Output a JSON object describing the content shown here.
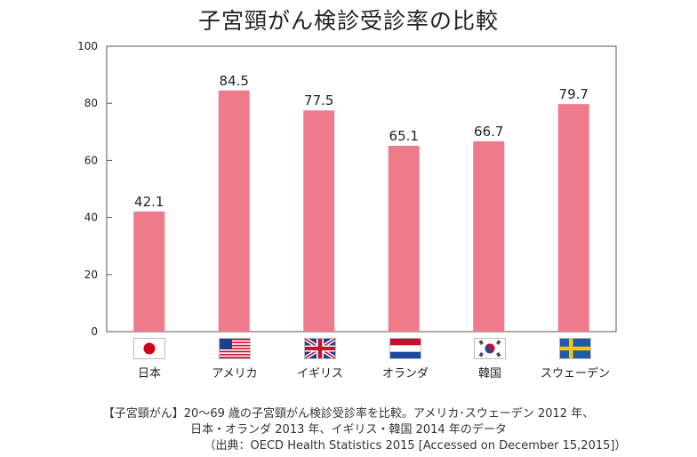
{
  "title": "子宮頸がん検診受診率の比較",
  "chart_data": {
    "type": "bar",
    "title": "子宮頸がん検診受診率の比較",
    "categories": [
      "日本",
      "アメリカ",
      "イギリス",
      "オランダ",
      "韓国",
      "スウェーデン"
    ],
    "values": [
      42.1,
      84.5,
      77.5,
      65.1,
      66.7,
      79.7
    ],
    "value_labels": [
      "42.1",
      "84.5",
      "77.5",
      "65.1",
      "66.7",
      "79.7"
    ],
    "yticks": [
      "0",
      "20",
      "40",
      "60",
      "80",
      "100"
    ],
    "ylim": [
      0,
      100
    ],
    "xlabel": "",
    "ylabel": "",
    "grid": false,
    "bar_color": "#ee7a8c",
    "flags": [
      "japan-flag-icon",
      "usa-flag-icon",
      "uk-flag-icon",
      "netherlands-flag-icon",
      "south-korea-flag-icon",
      "sweden-flag-icon"
    ]
  },
  "note": {
    "line1": "【子宮頸がん】20～69 歳の子宮頸がん検診受診率を比較。アメリカ･スウェーデン 2012 年、",
    "line2": "日本・オランダ 2013 年、イギリス・韓国 2014 年のデータ",
    "line3": "（出典：OECD Health Statistics 2015 [Accessed on December 15,2015]）"
  }
}
